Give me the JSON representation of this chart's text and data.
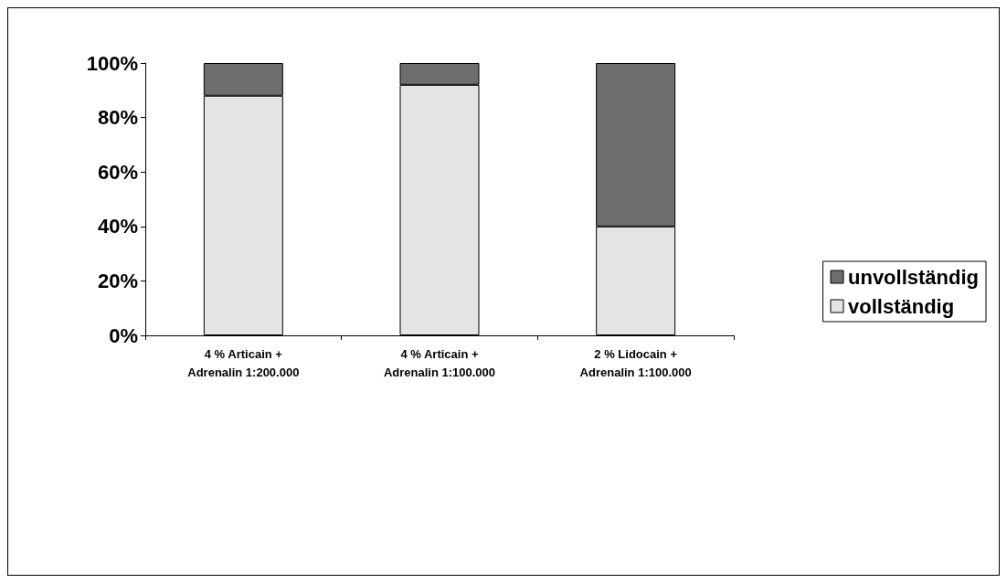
{
  "chart_data": {
    "type": "bar",
    "stacked": true,
    "categories": [
      "4 % Articain +\nAdrenalin 1:200.000",
      "4 % Articain +\nAdrenalin 1:100.000",
      "2 % Lidocain +\nAdrenalin 1:100.000"
    ],
    "series": [
      {
        "name": "vollständig",
        "color": "#e4e4e4",
        "values": [
          88,
          92,
          40
        ]
      },
      {
        "name": "unvollständig",
        "color": "#6e6e6e",
        "values": [
          12,
          8,
          60
        ]
      }
    ],
    "ylim": [
      0,
      100
    ],
    "yticks": [
      {
        "value": 0,
        "label": "0%"
      },
      {
        "value": 20,
        "label": "20%"
      },
      {
        "value": 40,
        "label": "40%"
      },
      {
        "value": 60,
        "label": "60%"
      },
      {
        "value": 80,
        "label": "80%"
      },
      {
        "value": 100,
        "label": "100%"
      }
    ],
    "grid": false,
    "legend": "right"
  }
}
